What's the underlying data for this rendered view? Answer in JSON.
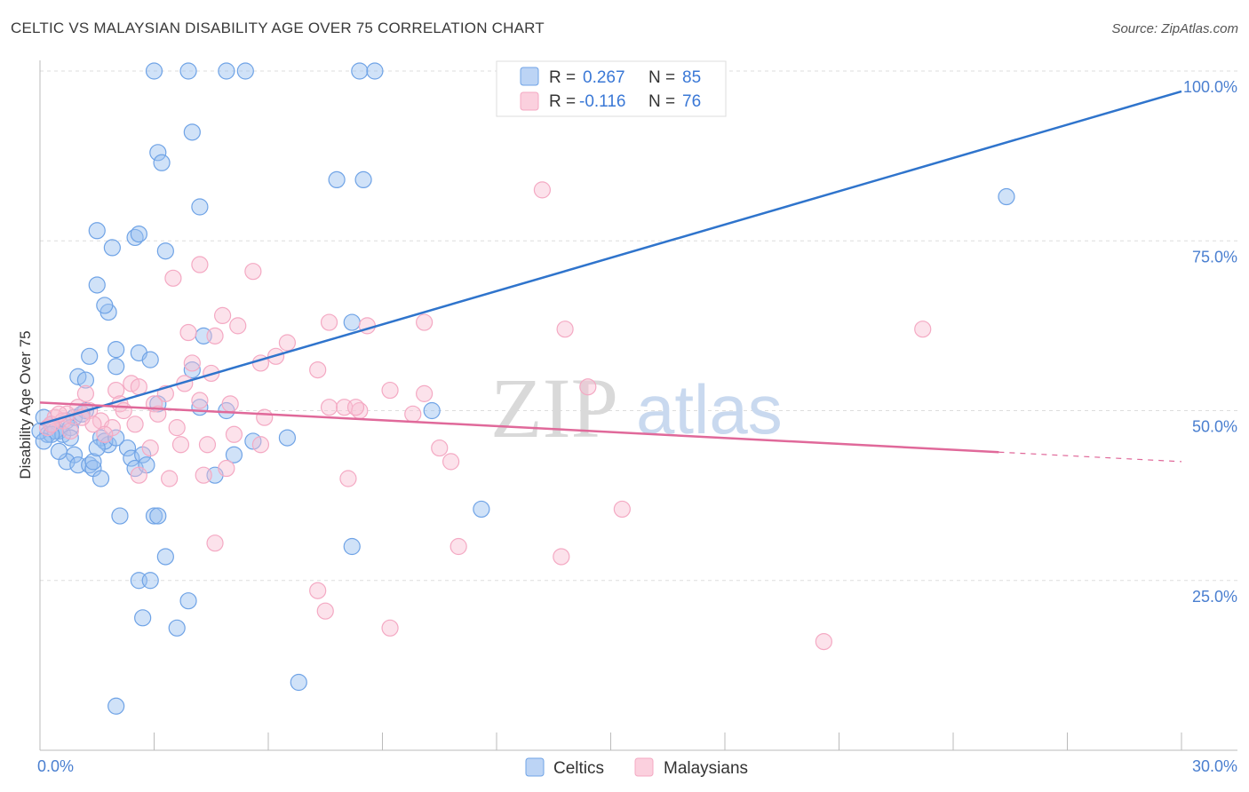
{
  "title": "CELTIC VS MALAYSIAN DISABILITY AGE OVER 75 CORRELATION CHART",
  "source": "Source: ZipAtlas.com",
  "colors": {
    "celtics": "#6fa3e6",
    "celtics_line": "#2f74cc",
    "malaysians": "#f4a9c3",
    "malaysians_line": "#e0699a",
    "axis_label": "#4a7fd0",
    "grid": "#dddddd"
  },
  "watermark": {
    "zip": "ZIP",
    "atlas": "atlas"
  },
  "legend": {
    "rows": [
      {
        "r_label": "R =",
        "r_value": "0.267",
        "n_label": "N =",
        "n_value": "85"
      },
      {
        "r_label": "R =",
        "r_value": "-0.116",
        "n_label": "N =",
        "n_value": "76"
      }
    ]
  },
  "bottom_legend": [
    "Celtics",
    "Malaysians"
  ],
  "chart_data": {
    "type": "scatter",
    "title": "CELTIC VS MALAYSIAN DISABILITY AGE OVER 75 CORRELATION CHART",
    "xlabel": "",
    "ylabel": "Disability Age Over 75",
    "xlim": [
      0,
      30
    ],
    "ylim": [
      0,
      100
    ],
    "x_tick_labels": [
      "0.0%",
      "30.0%"
    ],
    "y_tick_labels": [
      "25.0%",
      "50.0%",
      "75.0%",
      "100.0%"
    ],
    "y_tick_values": [
      25,
      50,
      75,
      100
    ],
    "grid": true,
    "legend_placement": "top-center",
    "series": [
      {
        "name": "Celtics",
        "r": 0.267,
        "n": 85,
        "trend": {
          "x": [
            0,
            30
          ],
          "y": [
            48.0,
            97.0
          ],
          "dashed_from": null
        },
        "points": [
          [
            3.0,
            100
          ],
          [
            3.9,
            100
          ],
          [
            4.9,
            100
          ],
          [
            5.4,
            100
          ],
          [
            8.4,
            100
          ],
          [
            8.8,
            100
          ],
          [
            4.0,
            91
          ],
          [
            3.1,
            88
          ],
          [
            3.2,
            86.5
          ],
          [
            7.8,
            84
          ],
          [
            8.5,
            84
          ],
          [
            4.2,
            80
          ],
          [
            25.4,
            81.5
          ],
          [
            1.5,
            76.5
          ],
          [
            2.5,
            75.5
          ],
          [
            1.9,
            74
          ],
          [
            2.6,
            76
          ],
          [
            3.3,
            73.5
          ],
          [
            1.5,
            68.5
          ],
          [
            1.8,
            64.5
          ],
          [
            1.7,
            65.5
          ],
          [
            4.3,
            61
          ],
          [
            8.2,
            63
          ],
          [
            1.3,
            58
          ],
          [
            2.0,
            59
          ],
          [
            2.6,
            58.5
          ],
          [
            2.9,
            57.5
          ],
          [
            2.0,
            56.5
          ],
          [
            4.0,
            56
          ],
          [
            1.0,
            55
          ],
          [
            1.2,
            54.5
          ],
          [
            3.1,
            51
          ],
          [
            4.2,
            50.5
          ],
          [
            4.9,
            50
          ],
          [
            10.3,
            50
          ],
          [
            0.1,
            49
          ],
          [
            0.3,
            48
          ],
          [
            0.5,
            47
          ],
          [
            0.7,
            48.5
          ],
          [
            0.9,
            49
          ],
          [
            1.2,
            50
          ],
          [
            0.2,
            46.5
          ],
          [
            0.4,
            47
          ],
          [
            0.6,
            46.5
          ],
          [
            0.8,
            47.5
          ],
          [
            1.1,
            49.5
          ],
          [
            0.0,
            47
          ],
          [
            0.3,
            46.5
          ],
          [
            0.1,
            45.5
          ],
          [
            0.8,
            46
          ],
          [
            1.6,
            46
          ],
          [
            1.8,
            45
          ],
          [
            2.3,
            44.5
          ],
          [
            0.9,
            43.5
          ],
          [
            1.7,
            45.5
          ],
          [
            2.0,
            46
          ],
          [
            5.6,
            45.5
          ],
          [
            6.5,
            46
          ],
          [
            5.1,
            43.5
          ],
          [
            0.7,
            42.5
          ],
          [
            1.0,
            42
          ],
          [
            1.3,
            42
          ],
          [
            1.4,
            41.5
          ],
          [
            1.4,
            42.5
          ],
          [
            2.4,
            43
          ],
          [
            2.5,
            41.5
          ],
          [
            2.7,
            43.5
          ],
          [
            1.6,
            40
          ],
          [
            4.6,
            40.5
          ],
          [
            2.1,
            34.5
          ],
          [
            3.0,
            34.5
          ],
          [
            3.1,
            34.5
          ],
          [
            11.6,
            35.5
          ],
          [
            3.3,
            28.5
          ],
          [
            8.2,
            30
          ],
          [
            2.6,
            25
          ],
          [
            2.9,
            25
          ],
          [
            2.7,
            19.5
          ],
          [
            3.9,
            22
          ],
          [
            3.6,
            18
          ],
          [
            6.8,
            10
          ],
          [
            2.0,
            6.5
          ],
          [
            0.5,
            44
          ],
          [
            1.5,
            44.5
          ],
          [
            2.8,
            42
          ]
        ]
      },
      {
        "name": "Malaysians",
        "r": -0.116,
        "n": 76,
        "trend": {
          "x": [
            0,
            30
          ],
          "y": [
            51.2,
            42.5
          ],
          "dashed_from": 25.2
        },
        "points": [
          [
            13.2,
            82.5
          ],
          [
            4.2,
            71.5
          ],
          [
            5.6,
            70.5
          ],
          [
            3.5,
            69.5
          ],
          [
            4.8,
            64
          ],
          [
            5.2,
            62.5
          ],
          [
            7.6,
            63
          ],
          [
            8.6,
            62.5
          ],
          [
            10.1,
            63
          ],
          [
            13.8,
            62
          ],
          [
            23.2,
            62
          ],
          [
            3.9,
            61.5
          ],
          [
            4.6,
            61
          ],
          [
            6.5,
            60
          ],
          [
            5.8,
            57
          ],
          [
            4.0,
            57
          ],
          [
            7.3,
            56
          ],
          [
            3.8,
            54
          ],
          [
            2.4,
            54
          ],
          [
            2.0,
            53
          ],
          [
            2.6,
            53.5
          ],
          [
            1.2,
            52.5
          ],
          [
            3.3,
            52.5
          ],
          [
            9.2,
            53
          ],
          [
            10.1,
            52.5
          ],
          [
            14.4,
            53.5
          ],
          [
            4.2,
            51.5
          ],
          [
            5.0,
            51
          ],
          [
            2.1,
            51
          ],
          [
            3.0,
            51
          ],
          [
            7.6,
            50.5
          ],
          [
            8.0,
            50.5
          ],
          [
            8.4,
            50
          ],
          [
            8.3,
            50.5
          ],
          [
            1.0,
            50.5
          ],
          [
            1.3,
            50
          ],
          [
            0.7,
            49.5
          ],
          [
            3.1,
            49.5
          ],
          [
            9.8,
            49.5
          ],
          [
            5.9,
            49
          ],
          [
            0.4,
            49
          ],
          [
            0.6,
            48.5
          ],
          [
            1.6,
            48.5
          ],
          [
            0.2,
            47.5
          ],
          [
            1.4,
            48
          ],
          [
            2.5,
            48
          ],
          [
            1.9,
            47.5
          ],
          [
            0.8,
            47
          ],
          [
            1.7,
            46.5
          ],
          [
            5.1,
            46.5
          ],
          [
            3.7,
            45
          ],
          [
            4.4,
            45
          ],
          [
            5.8,
            45
          ],
          [
            2.9,
            44.5
          ],
          [
            10.5,
            44.5
          ],
          [
            10.8,
            42.5
          ],
          [
            4.9,
            41.5
          ],
          [
            4.3,
            40.5
          ],
          [
            2.6,
            40.5
          ],
          [
            3.4,
            40
          ],
          [
            8.1,
            40
          ],
          [
            11.0,
            30
          ],
          [
            4.6,
            30.5
          ],
          [
            15.3,
            35.5
          ],
          [
            13.7,
            28.5
          ],
          [
            7.3,
            23.5
          ],
          [
            7.5,
            20.5
          ],
          [
            9.2,
            18
          ],
          [
            20.6,
            16
          ],
          [
            0.3,
            48
          ],
          [
            0.5,
            49.5
          ],
          [
            1.1,
            49
          ],
          [
            4.5,
            55.5
          ],
          [
            6.2,
            58
          ],
          [
            3.6,
            47.5
          ],
          [
            2.2,
            50
          ]
        ]
      }
    ]
  }
}
